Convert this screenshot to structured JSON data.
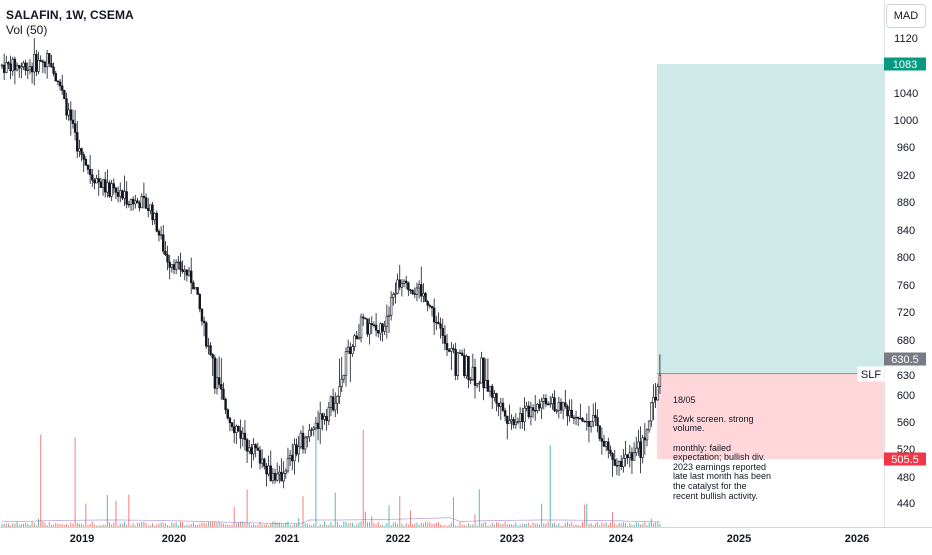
{
  "header": {
    "title": "SALAFIN, 1W, CSEMA",
    "volume_label": "Vol (50)"
  },
  "currency": "MAD",
  "symbol_tag": "SLF",
  "note": {
    "date": "18/05",
    "lines": "52wk screen. strong\nvolume.\n\nmonthly: failed\nexpectation; bullish div.\n2023 earnings reported\nlate last month has been\nthe catalyst for the\nrecent bullish activity."
  },
  "colors": {
    "candle": "#131722",
    "up_volume": "#26a69a",
    "down_volume": "#ef5350",
    "target_zone": "#b2dfdb",
    "stop_zone": "#ffcdd2",
    "target_label": "#089981",
    "stop_label": "#f23645",
    "entry_label": "#787b86",
    "axis_text": "#131722"
  },
  "chart_data": {
    "type": "candlestick",
    "interval": "1W",
    "x_axis_labels": [
      "2019",
      "2020",
      "2021",
      "2022",
      "2023",
      "2024",
      "2025",
      "2026"
    ],
    "y_axis_ticks": [
      1120,
      1040,
      1000.0,
      960.0,
      920.0,
      880.0,
      840.0,
      800.0,
      760.0,
      720.0,
      680.0,
      630.0,
      600.0,
      560.0,
      520.0,
      480.0,
      440.0
    ],
    "y_range": [
      415,
      1135
    ],
    "position": {
      "type": "long",
      "entry": 630.5,
      "target": 1083,
      "stop": 505.5,
      "entry_label": "630.5",
      "target_label": "1083",
      "stop_label": "505.5"
    },
    "price_path": [
      {
        "date": "2018-06",
        "close": 1080
      },
      {
        "date": "2018-09",
        "close": 1090
      },
      {
        "date": "2019-01",
        "close": 940
      },
      {
        "date": "2019-04",
        "close": 900
      },
      {
        "date": "2019-07",
        "close": 885
      },
      {
        "date": "2019-10",
        "close": 870
      },
      {
        "date": "2019-12",
        "close": 800
      },
      {
        "date": "2020-03",
        "close": 770
      },
      {
        "date": "2020-05",
        "close": 640
      },
      {
        "date": "2020-07",
        "close": 560
      },
      {
        "date": "2020-09",
        "close": 530
      },
      {
        "date": "2020-12",
        "close": 475
      },
      {
        "date": "2021-03",
        "close": 540
      },
      {
        "date": "2021-06",
        "close": 590
      },
      {
        "date": "2021-09",
        "close": 705
      },
      {
        "date": "2021-11",
        "close": 690
      },
      {
        "date": "2022-01",
        "close": 765
      },
      {
        "date": "2022-04",
        "close": 740
      },
      {
        "date": "2022-07",
        "close": 640
      },
      {
        "date": "2022-10",
        "close": 620
      },
      {
        "date": "2023-01",
        "close": 560
      },
      {
        "date": "2023-04",
        "close": 590
      },
      {
        "date": "2023-07",
        "close": 580
      },
      {
        "date": "2023-10",
        "close": 560
      },
      {
        "date": "2023-12",
        "close": 505
      },
      {
        "date": "2024-03",
        "close": 520
      },
      {
        "date": "2024-05",
        "close": 630
      }
    ]
  }
}
